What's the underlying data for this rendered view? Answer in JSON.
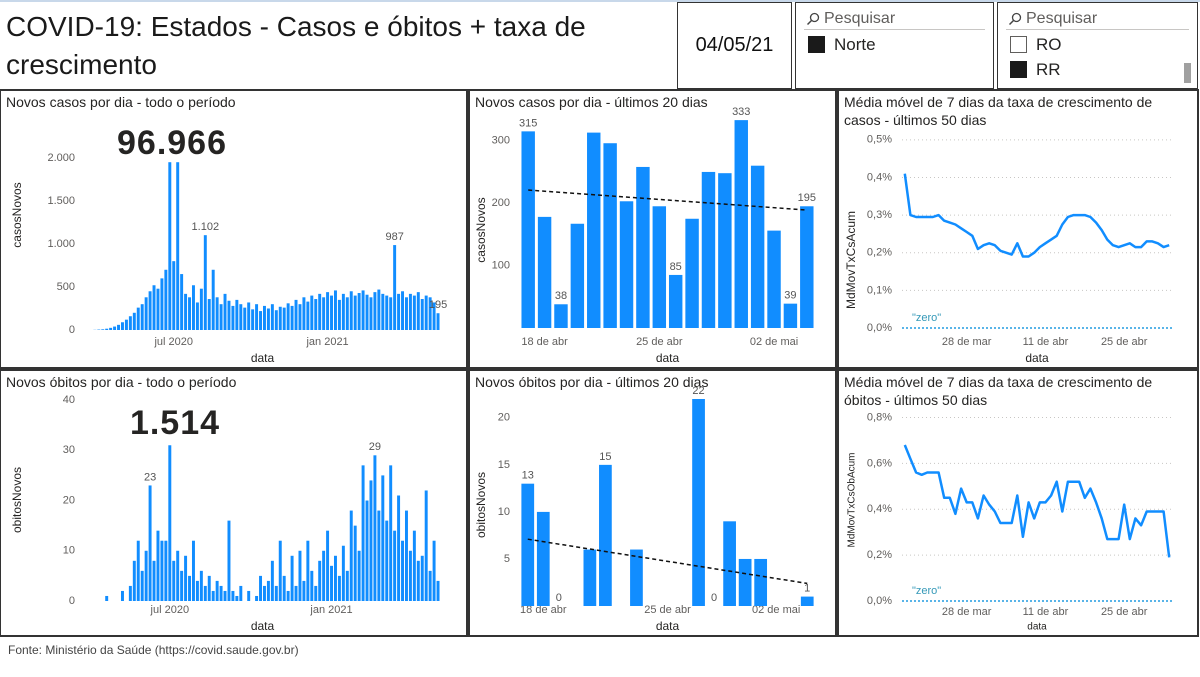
{
  "header": {
    "title": "COVID-19: Estados - Casos e óbitos + taxa de crescimento",
    "date": "04/05/21"
  },
  "slicers": [
    {
      "placeholder": "Pesquisar",
      "items": [
        {
          "label": "Norte",
          "checked": true
        }
      ]
    },
    {
      "placeholder": "Pesquisar",
      "items": [
        {
          "label": "RO",
          "checked": false
        },
        {
          "label": "RR",
          "checked": true
        }
      ]
    }
  ],
  "footer": "Fonte: Ministério da Saúde (https://covid.saude.gov.br)",
  "chart_data": [
    {
      "type": "bar",
      "title": "Novos casos por dia - todo o período",
      "card": {
        "value": 96966,
        "label": "96.966"
      },
      "ylabel": "casosNovos",
      "xlabel": "data",
      "color": "#118dff",
      "grid": false,
      "ylim": [
        0,
        2150
      ],
      "yticks": [
        0,
        500,
        {
          "value": 1000,
          "label": "1.000"
        },
        {
          "value": 1500,
          "label": "1.500"
        },
        {
          "value": 2000,
          "label": "2.000"
        }
      ],
      "categories": [
        null,
        null,
        null,
        null,
        null,
        null,
        null,
        null,
        null,
        null,
        null,
        null,
        null,
        null,
        null,
        null,
        null,
        null,
        null,
        null,
        null,
        null,
        "jul 2020",
        null,
        null,
        null,
        null,
        null,
        null,
        null,
        null,
        null,
        null,
        null,
        null,
        null,
        null,
        null,
        null,
        null,
        null,
        null,
        null,
        null,
        null,
        null,
        null,
        null,
        null,
        null,
        null,
        null,
        null,
        null,
        null,
        null,
        null,
        null,
        null,
        null,
        null,
        "jan 2021",
        null,
        null,
        null,
        null,
        null,
        null,
        null,
        null,
        null,
        null,
        null,
        null,
        null,
        null,
        null,
        null,
        null,
        null,
        null,
        null,
        null,
        null,
        null,
        null,
        null,
        null,
        null,
        null
      ],
      "values": [
        0,
        0,
        2,
        5,
        8,
        15,
        25,
        40,
        60,
        90,
        120,
        160,
        200,
        260,
        300,
        380,
        450,
        520,
        480,
        600,
        700,
        1950,
        800,
        1950,
        650,
        420,
        380,
        520,
        320,
        480,
        1102,
        360,
        700,
        380,
        300,
        420,
        340,
        280,
        350,
        300,
        260,
        320,
        240,
        300,
        220,
        280,
        250,
        300,
        230,
        270,
        260,
        310,
        280,
        350,
        300,
        380,
        330,
        400,
        360,
        420,
        380,
        440,
        400,
        460,
        350,
        420,
        380,
        450,
        400,
        430,
        460,
        410,
        380,
        440,
        470,
        420,
        400,
        380,
        987,
        420,
        450,
        380,
        420,
        400,
        440,
        360,
        400,
        380,
        320,
        195
      ],
      "value_labels": [
        null,
        null,
        null,
        null,
        null,
        null,
        null,
        null,
        null,
        null,
        null,
        null,
        null,
        null,
        null,
        null,
        null,
        null,
        null,
        null,
        null,
        null,
        null,
        null,
        null,
        null,
        null,
        null,
        null,
        null,
        "1.102",
        null,
        null,
        null,
        null,
        null,
        null,
        null,
        null,
        null,
        null,
        null,
        null,
        null,
        null,
        null,
        null,
        null,
        null,
        null,
        null,
        null,
        null,
        null,
        null,
        null,
        null,
        null,
        null,
        null,
        null,
        null,
        null,
        null,
        null,
        null,
        null,
        null,
        null,
        null,
        null,
        null,
        null,
        null,
        null,
        null,
        null,
        null,
        "987",
        null,
        null,
        null,
        null,
        null,
        null,
        null,
        null,
        null,
        null,
        "195"
      ]
    },
    {
      "type": "bar",
      "title": "Novos casos por dia - últimos 20 dias",
      "ylabel": "casosNovos",
      "xlabel": "data",
      "color": "#118dff",
      "grid": false,
      "ylim": [
        0,
        330
      ],
      "yticks": [
        100,
        200,
        300
      ],
      "categories": [
        null,
        "18 de abr",
        null,
        null,
        null,
        null,
        null,
        null,
        "25 de abr",
        null,
        null,
        null,
        null,
        null,
        null,
        "02 de mai",
        null,
        null
      ],
      "values": [
        315,
        178,
        38,
        167,
        313,
        296,
        203,
        258,
        195,
        85,
        175,
        250,
        248,
        333,
        260,
        156,
        39,
        195
      ],
      "value_labels": [
        "315",
        null,
        "38",
        null,
        null,
        null,
        null,
        null,
        null,
        "85",
        null,
        null,
        null,
        "333",
        null,
        null,
        "39",
        "195"
      ],
      "trendline": [
        221,
        189
      ]
    },
    {
      "type": "line",
      "title": "Média móvel de 7 dias da taxa de crescimento de casos - últimos 50 dias",
      "ylabel": "MdMovTxCsAcum",
      "xlabel": "data",
      "color": "#118dff",
      "grid": true,
      "ylim": [
        0,
        0.55
      ],
      "yticks": [
        {
          "value": 0,
          "label": "0,0%"
        },
        {
          "value": 0.1,
          "label": "0,1%"
        },
        {
          "value": 0.2,
          "label": "0,2%"
        },
        {
          "value": 0.3,
          "label": "0,3%"
        },
        {
          "value": 0.4,
          "label": "0,4%"
        },
        {
          "value": 0.5,
          "label": "0,5%"
        }
      ],
      "reference": {
        "value": 0,
        "label": "\"zero\""
      },
      "categories": [
        null,
        null,
        null,
        null,
        null,
        null,
        null,
        null,
        null,
        null,
        null,
        "28 de mar",
        null,
        null,
        null,
        null,
        null,
        null,
        null,
        null,
        null,
        null,
        null,
        null,
        null,
        "11 de abr",
        null,
        null,
        null,
        null,
        null,
        null,
        null,
        null,
        null,
        null,
        null,
        null,
        null,
        "25 de abr",
        null,
        null,
        null,
        null,
        null,
        null,
        null,
        null
      ],
      "values": [
        0.41,
        0.3,
        0.295,
        0.295,
        0.295,
        0.295,
        0.3,
        0.285,
        0.28,
        0.275,
        0.265,
        0.255,
        0.245,
        0.21,
        0.22,
        0.225,
        0.22,
        0.205,
        0.2,
        0.195,
        0.225,
        0.19,
        0.19,
        0.2,
        0.215,
        0.225,
        0.235,
        0.245,
        0.275,
        0.295,
        0.3,
        0.3,
        0.3,
        0.295,
        0.28,
        0.26,
        0.235,
        0.22,
        0.215,
        0.22,
        0.225,
        0.215,
        0.215,
        0.23,
        0.23,
        0.225,
        0.215,
        0.22
      ]
    },
    {
      "type": "bar",
      "title": "Novos óbitos por dia - todo o período",
      "card": {
        "value": 1514,
        "label": "1.514"
      },
      "ylabel": "obitosNovos",
      "xlabel": "data",
      "color": "#118dff",
      "grid": false,
      "ylim": [
        0,
        42
      ],
      "yticks": [
        0,
        10,
        20,
        30,
        40
      ],
      "categories": [
        null,
        null,
        null,
        null,
        null,
        null,
        null,
        null,
        null,
        null,
        null,
        null,
        null,
        null,
        null,
        null,
        null,
        null,
        null,
        null,
        null,
        "jul 2020",
        null,
        null,
        null,
        null,
        null,
        null,
        null,
        null,
        null,
        null,
        null,
        null,
        null,
        null,
        null,
        null,
        null,
        null,
        null,
        null,
        null,
        null,
        null,
        null,
        null,
        null,
        null,
        null,
        null,
        null,
        null,
        null,
        null,
        null,
        null,
        null,
        null,
        null,
        null,
        null,
        "jan 2021",
        null,
        null,
        null,
        null,
        null,
        null,
        null,
        null,
        null,
        null,
        null,
        null,
        null,
        null,
        null,
        null,
        null,
        null,
        null,
        null,
        null,
        null,
        null,
        null,
        null,
        null,
        null
      ],
      "values": [
        0,
        0,
        0,
        0,
        0,
        1,
        0,
        0,
        0,
        2,
        0,
        3,
        8,
        12,
        6,
        10,
        23,
        8,
        14,
        12,
        12,
        31,
        8,
        10,
        6,
        9,
        5,
        12,
        4,
        6,
        3,
        5,
        2,
        4,
        3,
        2,
        16,
        2,
        1,
        3,
        0,
        2,
        0,
        1,
        5,
        3,
        4,
        8,
        3,
        12,
        5,
        2,
        9,
        3,
        10,
        4,
        12,
        6,
        3,
        8,
        10,
        14,
        7,
        9,
        5,
        11,
        6,
        18,
        15,
        10,
        27,
        20,
        24,
        29,
        18,
        25,
        16,
        27,
        14,
        21,
        12,
        18,
        10,
        14,
        8,
        9,
        22,
        6,
        12,
        4
      ],
      "value_labels": [
        null,
        null,
        null,
        null,
        null,
        null,
        null,
        null,
        null,
        null,
        null,
        null,
        null,
        null,
        null,
        null,
        "23",
        null,
        null,
        null,
        null,
        null,
        null,
        null,
        null,
        null,
        null,
        null,
        null,
        null,
        null,
        null,
        null,
        null,
        null,
        null,
        null,
        null,
        null,
        null,
        null,
        null,
        null,
        null,
        null,
        null,
        null,
        null,
        null,
        null,
        null,
        null,
        null,
        null,
        null,
        null,
        null,
        null,
        null,
        null,
        null,
        null,
        null,
        null,
        null,
        null,
        null,
        null,
        null,
        null,
        null,
        null,
        null,
        "29",
        null,
        null,
        null,
        null,
        null,
        null,
        null,
        null,
        null,
        null,
        null,
        null,
        null,
        null,
        null,
        null
      ]
    },
    {
      "type": "bar",
      "title": "Novos óbitos por dia - últimos 20 dias",
      "ylabel": "obitosNovos",
      "xlabel": "data",
      "color": "#118dff",
      "grid": false,
      "ylim": [
        0,
        22
      ],
      "yticks": [
        5,
        10,
        15,
        20
      ],
      "categories": [
        null,
        "18 de abr",
        null,
        null,
        null,
        null,
        null,
        null,
        null,
        "25 de abr",
        null,
        null,
        null,
        null,
        null,
        null,
        "02 de mai",
        null,
        null
      ],
      "values": [
        13,
        10,
        0,
        0,
        6,
        15,
        0,
        6,
        0,
        0,
        0,
        22,
        0,
        9,
        5,
        5,
        0,
        0,
        1
      ],
      "value_labels": [
        "13",
        null,
        "0",
        null,
        null,
        "15",
        null,
        null,
        null,
        null,
        null,
        "22",
        "0",
        null,
        null,
        null,
        null,
        null,
        "1"
      ],
      "trendline": [
        7.1,
        2.4
      ]
    },
    {
      "type": "line",
      "title": "Média móvel de 7 dias da taxa de crescimento de óbitos - últimos 50 dias",
      "ylabel": "MdMovTxCsObAcum",
      "xlabel": "data",
      "color": "#118dff",
      "grid": true,
      "ylim": [
        0,
        0.85
      ],
      "yticks": [
        {
          "value": 0,
          "label": "0,0%"
        },
        {
          "value": 0.2,
          "label": "0,2%"
        },
        {
          "value": 0.4,
          "label": "0,4%"
        },
        {
          "value": 0.6,
          "label": "0,6%"
        },
        {
          "value": 0.8,
          "label": "0,8%"
        }
      ],
      "reference": {
        "value": 0,
        "label": "\"zero\""
      },
      "categories": [
        null,
        null,
        null,
        null,
        null,
        null,
        null,
        null,
        null,
        null,
        null,
        "28 de mar",
        null,
        null,
        null,
        null,
        null,
        null,
        null,
        null,
        null,
        null,
        null,
        null,
        null,
        "11 de abr",
        null,
        null,
        null,
        null,
        null,
        null,
        null,
        null,
        null,
        null,
        null,
        null,
        null,
        "25 de abr",
        null,
        null,
        null,
        null,
        null,
        null,
        null,
        null
      ],
      "values": [
        0.68,
        0.62,
        0.56,
        0.55,
        0.56,
        0.56,
        0.56,
        0.45,
        0.45,
        0.38,
        0.49,
        0.43,
        0.43,
        0.36,
        0.46,
        0.42,
        0.39,
        0.34,
        0.34,
        0.34,
        0.46,
        0.28,
        0.43,
        0.36,
        0.43,
        0.43,
        0.46,
        0.52,
        0.39,
        0.52,
        0.52,
        0.52,
        0.45,
        0.49,
        0.43,
        0.36,
        0.27,
        0.27,
        0.27,
        0.42,
        0.27,
        0.36,
        0.33,
        0.39,
        0.39,
        0.39,
        0.39,
        0.19
      ]
    }
  ]
}
